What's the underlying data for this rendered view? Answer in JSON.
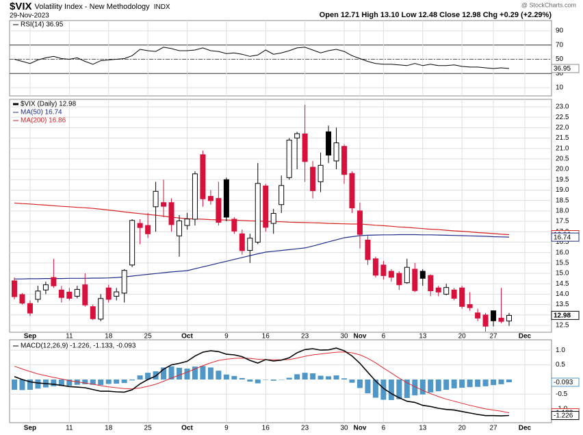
{
  "header": {
    "symbol": "$VIX",
    "name": "Volatility Index - New Methodology",
    "exchange": "INDX",
    "date": "29-Nov-2023",
    "quote": "Open 12.71  High 13.10  Low 12.48  Close 12.98  Chg +0.29 (+2.29%)",
    "source": "@ StockCharts.com"
  },
  "chart_data": {
    "type": "candlestick",
    "title": "$VIX (Daily) 12.98",
    "categories": [
      null,
      null,
      "Sep",
      null,
      null,
      null,
      null,
      "11",
      null,
      null,
      null,
      null,
      "18",
      null,
      null,
      null,
      null,
      "25",
      null,
      null,
      null,
      null,
      "Oct",
      null,
      null,
      null,
      null,
      "9",
      null,
      null,
      null,
      null,
      "16",
      null,
      null,
      null,
      null,
      "23",
      null,
      null,
      null,
      null,
      "30",
      null,
      "Nov",
      null,
      null,
      "6",
      null,
      null,
      null,
      null,
      "13",
      null,
      null,
      null,
      null,
      "20",
      null,
      null,
      null,
      "27",
      null,
      null,
      null,
      "Dec"
    ],
    "open": [
      14.64,
      13.98,
      13.55,
      13.75,
      14.2,
      14.8,
      14.2,
      14.1,
      13.9,
      14.45,
      13.4,
      12.8,
      14.3,
      13.9,
      14.05,
      15.4,
      17.4,
      17.3,
      18.2,
      18.4,
      18.4,
      16.8,
      17.3,
      17.6,
      20.7,
      18.7,
      18.6,
      19.5,
      17.6,
      16.9,
      16.1,
      16.5,
      19.2,
      17.4,
      18.3,
      19.6,
      21.5,
      21.7,
      20.1,
      19.4,
      21.8,
      20.4,
      21.1,
      19.8,
      18.0,
      16.6,
      15.7,
      15.4,
      15.1,
      15.0,
      14.55,
      15.2,
      15.1,
      14.9,
      14.3,
      14.0,
      14.2,
      14.3,
      13.5,
      13.1,
      13.0,
      13.2,
      12.85,
      12.71,
      null,
      null
    ],
    "high": [
      14.8,
      14.05,
      13.7,
      14.4,
      14.6,
      15.7,
      14.4,
      14.3,
      14.4,
      15.0,
      13.5,
      14.0,
      14.45,
      14.3,
      15.2,
      17.6,
      17.6,
      17.9,
      19.4,
      19.5,
      18.6,
      17.8,
      17.9,
      19.9,
      20.9,
      19.0,
      19.4,
      19.6,
      17.7,
      17.1,
      16.9,
      20.3,
      19.3,
      18.1,
      19.7,
      21.5,
      21.8,
      23.1,
      20.4,
      20.8,
      22.1,
      22.0,
      21.2,
      19.9,
      18.4,
      16.8,
      15.8,
      15.6,
      15.2,
      15.1,
      15.7,
      15.5,
      15.2,
      14.95,
      14.4,
      14.5,
      14.3,
      14.4,
      14.1,
      13.3,
      13.1,
      13.2,
      14.3,
      13.1,
      null,
      null
    ],
    "low": [
      13.75,
      13.5,
      12.95,
      13.6,
      14.0,
      14.3,
      13.6,
      13.7,
      13.8,
      13.4,
      12.75,
      12.7,
      13.6,
      13.7,
      13.6,
      15.3,
      16.4,
      16.7,
      17.0,
      17.7,
      17.0,
      15.8,
      17.1,
      17.3,
      18.2,
      18.3,
      17.3,
      17.5,
      16.9,
      15.9,
      15.5,
      16.4,
      17.0,
      16.9,
      17.9,
      19.5,
      20.0,
      19.4,
      18.6,
      18.9,
      20.3,
      20.0,
      19.3,
      17.9,
      16.2,
      15.4,
      14.8,
      14.7,
      14.6,
      14.2,
      14.5,
      14.1,
      14.4,
      13.9,
      13.9,
      13.95,
      13.7,
      13.3,
      13.2,
      12.7,
      12.2,
      12.45,
      12.6,
      12.48,
      null,
      null
    ],
    "close": [
      13.88,
      13.57,
      13.09,
      14.15,
      14.45,
      14.4,
      13.84,
      13.8,
      14.23,
      13.48,
      12.82,
      13.79,
      13.75,
      14.11,
      15.14,
      17.54,
      17.2,
      16.9,
      18.94,
      18.22,
      17.34,
      17.52,
      17.61,
      19.78,
      18.58,
      18.49,
      17.45,
      17.7,
      17.03,
      16.09,
      16.69,
      19.32,
      17.21,
      17.88,
      19.22,
      21.4,
      21.71,
      20.37,
      18.97,
      20.19,
      20.68,
      21.27,
      19.75,
      18.14,
      16.87,
      15.66,
      14.91,
      14.89,
      14.81,
      14.45,
      15.29,
      14.17,
      14.76,
      14.16,
      14.1,
      14.32,
      13.8,
      13.41,
      13.35,
      12.85,
      12.46,
      12.72,
      12.69,
      12.98,
      null,
      null
    ],
    "up_color": "#000000",
    "down_color": "#d8103c",
    "ylim": [
      12.17,
      23.36
    ],
    "yticks": [
      12.5,
      {
        "value": 13,
        "label": "13.0"
      },
      13.5,
      {
        "value": 14,
        "label": "14.0"
      },
      14.5,
      {
        "value": 15,
        "label": "15.0"
      },
      15.5,
      {
        "value": 16,
        "label": "16.0"
      },
      16.5,
      {
        "value": 17,
        "label": "17.0"
      },
      17.5,
      {
        "value": 18,
        "label": "18.0"
      },
      18.5,
      {
        "value": 19,
        "label": "19.0"
      },
      19.5,
      {
        "value": 20,
        "label": "20.0"
      },
      20.5,
      {
        "value": 21,
        "label": "21.0"
      },
      21.5,
      {
        "value": 22,
        "label": "22.0"
      },
      22.5,
      {
        "value": 23,
        "label": "23.0"
      }
    ],
    "grid": true,
    "series": [
      {
        "name": "MA(50) 16.74",
        "color": "#1c2a88",
        "values": [
          14.73,
          14.73,
          14.74,
          14.74,
          14.75,
          14.75,
          14.75,
          14.76,
          14.76,
          14.76,
          14.77,
          14.77,
          14.78,
          14.8,
          14.83,
          14.87,
          14.91,
          14.95,
          14.99,
          15.03,
          15.07,
          15.1,
          15.13,
          15.22,
          15.31,
          15.4,
          15.49,
          15.58,
          15.67,
          15.76,
          15.85,
          15.94,
          16.02,
          16.06,
          16.1,
          16.14,
          16.18,
          16.22,
          16.31,
          16.41,
          16.51,
          16.61,
          16.71,
          16.76,
          16.81,
          16.83,
          16.84,
          16.85,
          16.85,
          16.86,
          16.86,
          16.86,
          16.85,
          16.85,
          16.84,
          16.83,
          16.82,
          16.81,
          16.8,
          16.79,
          16.78,
          16.76,
          16.75,
          16.74,
          null,
          null
        ]
      },
      {
        "name": "MA(200) 16.86",
        "color": "#d42020",
        "values": [
          18.38,
          18.35,
          18.33,
          18.3,
          18.28,
          18.25,
          18.22,
          18.2,
          18.17,
          18.15,
          18.12,
          18.08,
          18.04,
          18.0,
          17.95,
          17.91,
          17.87,
          17.83,
          17.79,
          17.75,
          17.7,
          17.66,
          17.62,
          17.61,
          17.6,
          17.58,
          17.57,
          17.56,
          17.55,
          17.54,
          17.52,
          17.51,
          17.5,
          17.49,
          17.48,
          17.46,
          17.45,
          17.44,
          17.43,
          17.42,
          17.4,
          17.39,
          17.38,
          17.37,
          17.37,
          17.34,
          17.31,
          17.29,
          17.26,
          17.23,
          17.21,
          17.18,
          17.15,
          17.12,
          17.1,
          17.07,
          17.04,
          17.02,
          16.99,
          16.96,
          16.94,
          16.91,
          16.88,
          16.86,
          null,
          null
        ]
      }
    ],
    "rsi": {
      "type": "line",
      "name": "RSI(14) 36.95",
      "color": "#000000",
      "values": [
        50,
        47,
        44,
        49,
        52,
        54,
        51,
        50,
        52,
        47,
        43,
        48,
        49,
        50,
        51,
        55,
        64,
        62,
        61,
        67,
        65,
        62,
        62,
        63,
        66,
        62,
        61,
        58,
        59,
        57,
        54,
        56,
        63,
        57,
        59,
        62,
        66,
        67,
        63,
        59,
        62,
        64,
        61,
        55,
        51,
        47,
        44,
        43,
        43,
        42,
        41,
        44,
        41,
        43,
        41,
        41,
        42,
        40,
        39,
        39,
        38,
        37,
        38,
        36.95,
        null,
        null
      ],
      "ylim": [
        0,
        100
      ],
      "yticks": [
        10,
        30,
        50,
        70,
        90
      ],
      "bands": [
        30,
        70
      ],
      "midline": 50
    },
    "macd": {
      "type": "macd",
      "title": "MACD(12,26,9) -1.226, -1.133, -0.093",
      "macd": [
        0.1,
        0.0,
        -0.08,
        -0.12,
        -0.14,
        -0.16,
        -0.2,
        -0.24,
        -0.26,
        -0.28,
        -0.34,
        -0.4,
        -0.4,
        -0.42,
        -0.43,
        -0.35,
        -0.15,
        0.0,
        0.12,
        0.35,
        0.5,
        0.55,
        0.62,
        0.8,
        0.93,
        0.98,
        0.95,
        0.86,
        0.84,
        0.78,
        0.65,
        0.56,
        0.68,
        0.63,
        0.66,
        0.74,
        0.91,
        1.02,
        1.05,
        1.0,
        1.01,
        1.07,
        0.98,
        0.8,
        0.55,
        0.25,
        -0.05,
        -0.3,
        -0.48,
        -0.62,
        -0.74,
        -0.78,
        -0.88,
        -0.92,
        -0.98,
        -1.02,
        -1.04,
        -1.09,
        -1.14,
        -1.19,
        -1.23,
        -1.23,
        -1.24,
        -1.226,
        null,
        null
      ],
      "signal": [
        0.45,
        0.36,
        0.27,
        0.19,
        0.13,
        0.07,
        0.02,
        -0.04,
        -0.08,
        -0.12,
        -0.16,
        -0.21,
        -0.25,
        -0.28,
        -0.31,
        -0.32,
        -0.29,
        -0.23,
        -0.16,
        -0.06,
        0.05,
        0.15,
        0.25,
        0.36,
        0.47,
        0.57,
        0.65,
        0.69,
        0.72,
        0.73,
        0.72,
        0.69,
        0.68,
        0.67,
        0.67,
        0.68,
        0.73,
        0.79,
        0.84,
        0.87,
        0.9,
        0.93,
        0.94,
        0.91,
        0.84,
        0.72,
        0.57,
        0.39,
        0.22,
        0.05,
        -0.11,
        -0.24,
        -0.37,
        -0.48,
        -0.58,
        -0.67,
        -0.74,
        -0.81,
        -0.88,
        -0.94,
        -1.0,
        -1.04,
        -1.08,
        -1.133,
        null,
        null
      ],
      "histogram": [
        -0.35,
        -0.36,
        -0.35,
        -0.31,
        -0.27,
        -0.23,
        -0.22,
        -0.21,
        -0.18,
        -0.16,
        -0.18,
        -0.19,
        -0.15,
        -0.14,
        -0.12,
        -0.03,
        0.14,
        0.23,
        0.28,
        0.41,
        0.45,
        0.4,
        0.37,
        0.44,
        0.46,
        0.41,
        0.3,
        0.17,
        0.12,
        0.05,
        -0.07,
        -0.13,
        0.0,
        -0.04,
        -0.01,
        0.06,
        0.18,
        0.23,
        0.21,
        0.13,
        0.11,
        0.14,
        0.04,
        -0.11,
        -0.29,
        -0.47,
        -0.62,
        -0.69,
        -0.7,
        -0.67,
        -0.63,
        -0.54,
        -0.51,
        -0.44,
        -0.4,
        -0.35,
        -0.3,
        -0.28,
        -0.26,
        -0.25,
        -0.23,
        -0.19,
        -0.16,
        -0.093,
        null,
        null
      ],
      "macd_color": "#000000",
      "signal_color": "#e0282e",
      "histogram_color": "#4f97c7",
      "ylim": [
        -1.47,
        1.33
      ],
      "yticks": [
        {
          "value": 1,
          "label": "1.0"
        },
        0.5,
        -0.5,
        {
          "value": -1,
          "label": "-1.0"
        }
      ]
    }
  }
}
